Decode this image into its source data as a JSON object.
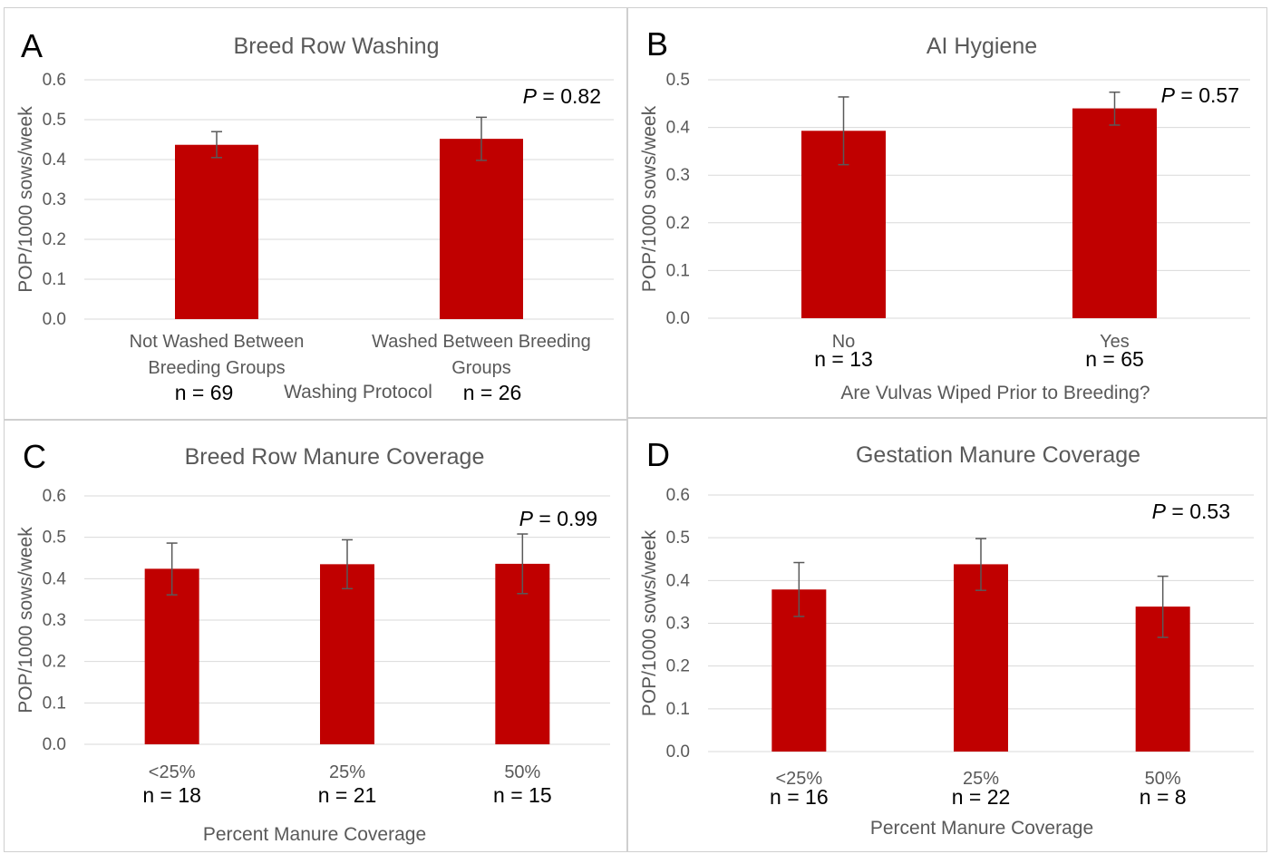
{
  "chart_data": [
    {
      "panel": "A",
      "type": "bar",
      "title": "Breed Row Washing",
      "ylabel": "POP/1000 sows/week",
      "xlabel": "Washing Protocol",
      "ylim": [
        0,
        0.6
      ],
      "yticks": [
        "0.0",
        "0.1",
        "0.2",
        "0.3",
        "0.4",
        "0.5",
        "0.6"
      ],
      "grid": true,
      "categories": [
        [
          "Not Washed Between",
          "Breeding Groups"
        ],
        [
          "Washed Between Breeding",
          "Groups"
        ]
      ],
      "n_labels": [
        "n = 69",
        "n = 26"
      ],
      "values": [
        0.437,
        0.452
      ],
      "error_low": [
        0.405,
        0.398
      ],
      "error_high": [
        0.47,
        0.506
      ],
      "p_label": "P",
      "p_value": " = 0.82",
      "colors": {
        "bar": "#c00000"
      }
    },
    {
      "panel": "B",
      "type": "bar",
      "title": "AI Hygiene",
      "ylabel": "POP/1000 sows/week",
      "xlabel": "Are Vulvas Wiped Prior to Breeding?",
      "ylim": [
        0,
        0.5
      ],
      "yticks": [
        "0.0",
        "0.1",
        "0.2",
        "0.3",
        "0.4",
        "0.5"
      ],
      "grid": true,
      "categories": [
        [
          "No"
        ],
        [
          "Yes"
        ]
      ],
      "n_labels": [
        "n = 13",
        "n = 65"
      ],
      "values": [
        0.393,
        0.44
      ],
      "error_low": [
        0.322,
        0.405
      ],
      "error_high": [
        0.464,
        0.474
      ],
      "p_label": "P",
      "p_value": " = 0.57",
      "colors": {
        "bar": "#c00000"
      }
    },
    {
      "panel": "C",
      "type": "bar",
      "title": "Breed Row Manure Coverage",
      "ylabel": "POP/1000 sows/week",
      "xlabel": "Percent Manure Coverage",
      "ylim": [
        0,
        0.6
      ],
      "yticks": [
        "0.0",
        "0.1",
        "0.2",
        "0.3",
        "0.4",
        "0.5",
        "0.6"
      ],
      "grid": true,
      "categories": [
        [
          "<25%"
        ],
        [
          "25%"
        ],
        [
          "50%"
        ]
      ],
      "n_labels": [
        "n = 18",
        "n = 21",
        "n = 15"
      ],
      "values": [
        0.424,
        0.435,
        0.436
      ],
      "error_low": [
        0.361,
        0.376,
        0.364
      ],
      "error_high": [
        0.486,
        0.494,
        0.508
      ],
      "p_label": "P",
      "p_value": " = 0.99",
      "colors": {
        "bar": "#c00000"
      }
    },
    {
      "panel": "D",
      "type": "bar",
      "title": "Gestation Manure Coverage",
      "ylabel": "POP/1000 sows/week",
      "xlabel": "Percent Manure Coverage",
      "ylim": [
        0,
        0.6
      ],
      "yticks": [
        "0.0",
        "0.1",
        "0.2",
        "0.3",
        "0.4",
        "0.5",
        "0.6"
      ],
      "grid": true,
      "categories": [
        [
          "<25%"
        ],
        [
          "25%"
        ],
        [
          "50%"
        ]
      ],
      "n_labels": [
        "n = 16",
        "n = 22",
        "n = 8"
      ],
      "values": [
        0.379,
        0.438,
        0.339
      ],
      "error_low": [
        0.316,
        0.377,
        0.267
      ],
      "error_high": [
        0.442,
        0.498,
        0.41
      ],
      "p_label": "P",
      "p_value": " =  0.53",
      "colors": {
        "bar": "#c00000"
      }
    }
  ]
}
